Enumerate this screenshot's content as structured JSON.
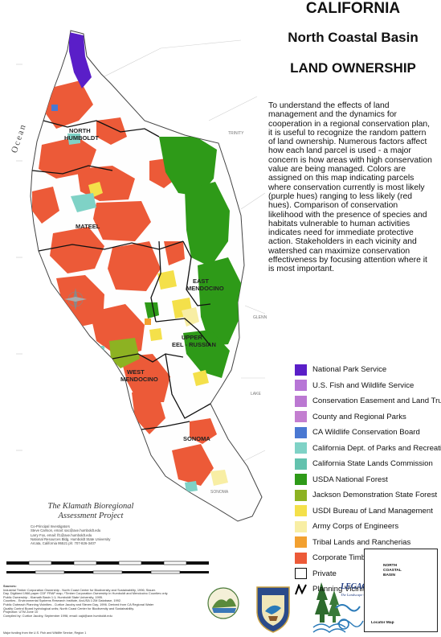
{
  "title": {
    "line1": "CALIFORNIA",
    "line2": "North Coastal Basin",
    "line3": "LAND OWNERSHIP"
  },
  "intro": "To understand the effects of land management and the dynamics for cooperation in a regional conservation plan, it is useful to recognize the random pattern of land ownership. Numerous factors affect how each land parcel is used - a major concern is how areas with high conservation value are being managed.  Colors are assigned on this map indicating parcels where conservation currently is most likely (purple hues) ranging to less likely (red hues). Comparison of conservation likelihood with the presence of species and habitats vulnerable to human activities indicates need for immediate protective action. Stakeholders in each vicinity and watershed can maximize conservation effectiveness by focusing attention where it is most important.",
  "legend": [
    {
      "label": "National Park Service",
      "color": "#5a1ec8"
    },
    {
      "label": "U.S. Fish and Wildlife Service",
      "color": "#b776d6"
    },
    {
      "label": "Conservation Easement and Land Trust",
      "color": "#bb78d2"
    },
    {
      "label": "County and Regional Parks",
      "color": "#c37ed0"
    },
    {
      "label": "CA Wildlife Conservation Board",
      "color": "#4a78d2"
    },
    {
      "label": "California Dept. of Parks and Recreation",
      "color": "#7fd2c6"
    },
    {
      "label": "California State Lands Commission",
      "color": "#63c2ae"
    },
    {
      "label": "USDA National Forest",
      "color": "#2e9a18"
    },
    {
      "label": "Jackson Demonstration State Forest",
      "color": "#8db222"
    },
    {
      "label": "USDI Bureau of Land Management",
      "color": "#f4e04a"
    },
    {
      "label": "Army Corps of Engineers",
      "color": "#f8eea4"
    },
    {
      "label": "Tribal Lands and Rancherias",
      "color": "#f2a030"
    },
    {
      "label": "Corporate Timber Industry",
      "color": "#ec5a38"
    },
    {
      "label": "Private",
      "color": "#ffffff"
    },
    {
      "label": "Planning Vicinity Boundary",
      "color": "#000000"
    }
  ],
  "vicinities": {
    "north_humboldt_1": "NORTH",
    "north_humboldt_2": "HUMBOLDT",
    "mateel": "MATEEL",
    "east_mendocino_1": "EAST",
    "east_mendocino_2": "MENDOCINO",
    "upper_eel_1": "UPPER",
    "upper_eel_2": "EEL - RUSSIAN",
    "west_mendocino_1": "WEST",
    "west_mendocino_2": "MENDOCINO",
    "sonoma": "SONOMA"
  },
  "places": {
    "trinity": "TRINITY",
    "glenn": "GLENN",
    "lake": "LAKE",
    "sonoma_small": "SONOMA"
  },
  "ocean": "Ocean",
  "klamath": {
    "line1": "The Klamath Bioregional",
    "line2": "Assessment Project"
  },
  "contact": [
    "Co-Principal Investigators",
    "Steve Carlson, email: sac@axe.humboldt.edu",
    "Larry Fox, email: lf1@axe.humboldt.edu",
    "National Resources Bldg, Humboldt State University",
    "Arcata, California 95521    ph: 707-826-3407"
  ],
  "sources": [
    "Sources:",
    "Industrial Timber Corporation Ownership - North Coast Center for Biodiversity and Sustainability, 1996; Stauer.",
    "Day. Digitized 1966 paper CDF FRAP map; *Timber Corporation Ownership in Humboldt and Mendocino Counties only.",
    "Public Ownership - Klamath Basin 1:1; Humboldt State University, 1995.",
    "Counties - Environmental Systems Research Institute, ArcUSA 1:2M Database, 1992.",
    "Public Outreach Planning Vicinities - Curtice Jacoby and Steven Day, 1996. Derived from CA Regional Water",
    "Quality Control Board hydrological units; North Coast Center for Biodiversity and Sustainability.",
    "Projection:  UTM Zone 10",
    "Compiled by: Curtice Jacoby, September 1996; email: cajd@axe.humboldt.edu"
  ],
  "funding": "Major funding from the U.S. Fish and Wildlife Service, Region 1",
  "inset": {
    "label1": "NORTH",
    "label2": "COASTAL",
    "label3": "BASIN",
    "locator": "Locator Map"
  },
  "legacy": {
    "name": "LEGACY",
    "tagline": "The Landscape Connection"
  }
}
